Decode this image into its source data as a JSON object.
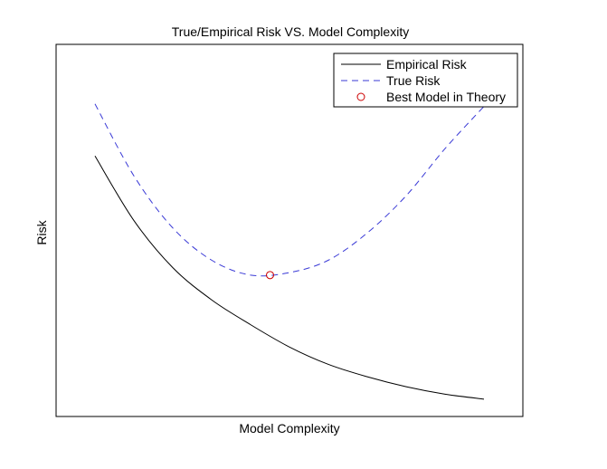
{
  "chart_data": {
    "type": "line",
    "title": "True/Empirical Risk VS. Model Complexity",
    "xlabel": "Model Complexity",
    "ylabel": "Risk",
    "xticks": [],
    "yticks": [],
    "xlim": [
      0,
      1.2
    ],
    "ylim": [
      0,
      1.5
    ],
    "grid": false,
    "legend_position": "top-right",
    "series": [
      {
        "name": "Empirical Risk",
        "style": "solid",
        "color": "#000000",
        "x": [
          0.1,
          0.2,
          0.3,
          0.4,
          0.5,
          0.6,
          0.7,
          0.8,
          0.9,
          1.0,
          1.1
        ],
        "y": [
          1.05,
          0.79,
          0.6,
          0.47,
          0.37,
          0.28,
          0.21,
          0.16,
          0.12,
          0.09,
          0.07
        ]
      },
      {
        "name": "True Risk",
        "style": "dashed",
        "color": "#3a3ad6",
        "x": [
          0.1,
          0.2,
          0.3,
          0.4,
          0.5,
          0.6,
          0.7,
          0.8,
          0.9,
          1.0,
          1.1
        ],
        "y": [
          1.26,
          0.97,
          0.76,
          0.63,
          0.57,
          0.58,
          0.63,
          0.74,
          0.89,
          1.08,
          1.25
        ]
      }
    ],
    "markers": [
      {
        "name": "Best Model in Theory",
        "shape": "circle",
        "color": "#cc0000",
        "x": 0.55,
        "y": 0.57
      }
    ]
  }
}
